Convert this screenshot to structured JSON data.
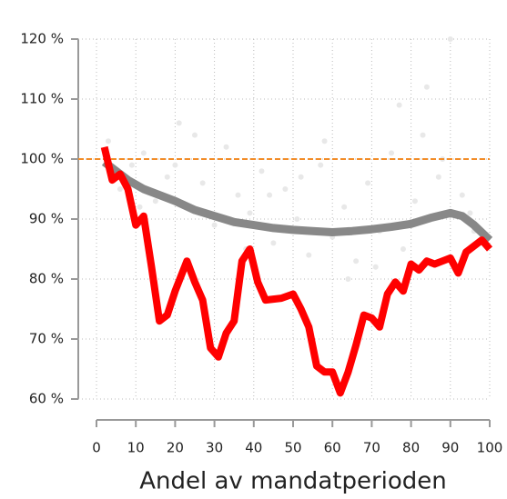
{
  "chart_data": {
    "type": "line",
    "x_label": "Andel av mandatperioden",
    "xlim": [
      0,
      100
    ],
    "xticks": [
      0,
      10,
      20,
      30,
      40,
      50,
      60,
      70,
      80,
      90,
      100
    ],
    "ylim": [
      60,
      120
    ],
    "yticks": [
      {
        "value": 60,
        "label": "60 %"
      },
      {
        "value": 70,
        "label": "70 %"
      },
      {
        "value": 80,
        "label": "80 %"
      },
      {
        "value": 90,
        "label": "90 %"
      },
      {
        "value": 100,
        "label": "100 %"
      },
      {
        "value": 110,
        "label": "110 %"
      },
      {
        "value": 120,
        "label": "120 %"
      }
    ],
    "grid": true,
    "reference_line": {
      "value": 100,
      "color": "#f28c28"
    },
    "scatter": {
      "color": "#e8e8e8",
      "x": [
        3,
        6,
        9,
        12,
        15,
        18,
        21,
        24,
        27,
        30,
        33,
        36,
        39,
        42,
        45,
        48,
        51,
        54,
        57,
        60,
        63,
        66,
        69,
        72,
        75,
        78,
        81,
        84,
        87,
        90,
        93,
        96,
        11,
        25,
        38,
        52,
        64,
        77,
        88,
        95,
        20,
        44,
        58,
        71,
        83
      ],
      "y": [
        103,
        95,
        99,
        101,
        93,
        97,
        106,
        92,
        96,
        89,
        102,
        94,
        91,
        98,
        86,
        95,
        90,
        84,
        99,
        87,
        92,
        83,
        96,
        88,
        101,
        85,
        93,
        112,
        97,
        120,
        94,
        88,
        92,
        104,
        85,
        97,
        80,
        109,
        100,
        91,
        99,
        94,
        103,
        82,
        104
      ]
    },
    "series": [
      {
        "color": "#ff0000",
        "x": [
          2,
          4,
          6,
          8,
          10,
          12,
          14,
          16,
          18,
          20,
          23,
          25,
          27,
          29,
          31,
          33,
          35,
          37,
          39,
          41,
          43,
          47,
          50,
          52,
          54,
          56,
          58,
          60,
          62,
          64,
          66,
          68,
          70,
          72,
          74,
          76,
          78,
          80,
          82,
          84,
          86,
          88,
          90,
          92,
          94,
          96,
          98,
          100
        ],
        "values": [
          102,
          96.5,
          97.5,
          95,
          89,
          90.5,
          82,
          73,
          74,
          78,
          83,
          79.5,
          76.5,
          68.5,
          67,
          71,
          73,
          83,
          85,
          79.5,
          76.5,
          76.8,
          77.5,
          75,
          72,
          65.5,
          64.5,
          64.5,
          61,
          64.5,
          69,
          74,
          73.5,
          72,
          77.5,
          79.5,
          78,
          82.5,
          81.5,
          83,
          82.5,
          83,
          83.5,
          81,
          84.5,
          85.5,
          86.5,
          85
        ]
      },
      {
        "color": "#888888",
        "x": [
          2,
          5,
          8,
          12,
          16,
          20,
          25,
          30,
          35,
          40,
          45,
          50,
          55,
          60,
          65,
          70,
          75,
          80,
          85,
          90,
          93,
          96,
          100
        ],
        "values": [
          99.5,
          98,
          96.5,
          95,
          94,
          93,
          91.5,
          90.5,
          89.5,
          89,
          88.5,
          88.2,
          88,
          87.8,
          88,
          88.3,
          88.7,
          89.2,
          90.2,
          91,
          90.5,
          89,
          86.5
        ]
      }
    ]
  }
}
